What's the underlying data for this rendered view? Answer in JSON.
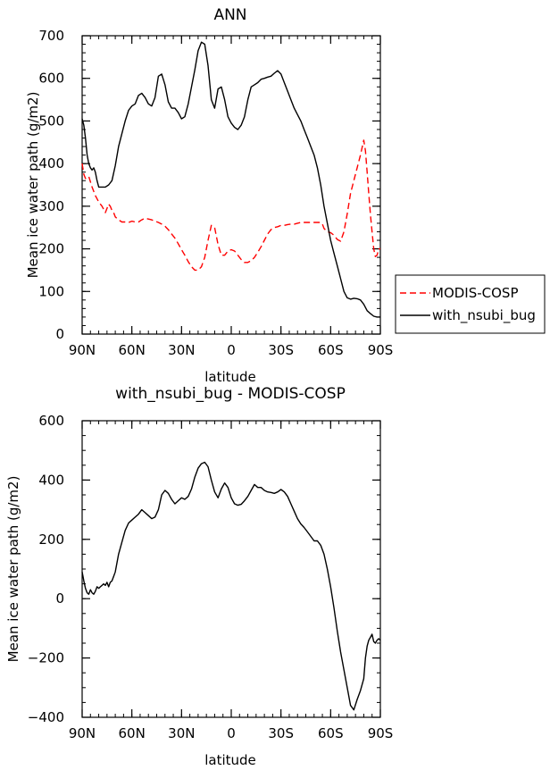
{
  "chart_data": [
    {
      "type": "line",
      "title": "ANN",
      "xlabel": "latitude",
      "ylabel": "Mean ice water path (g/m2)",
      "xlim": [
        90,
        -90
      ],
      "ylim": [
        0,
        700
      ],
      "xticks": [
        90,
        60,
        30,
        0,
        -30,
        -60,
        -90
      ],
      "xtick_labels": [
        "90N",
        "60N",
        "30N",
        "0",
        "30S",
        "60S",
        "90S"
      ],
      "yticks": [
        0,
        100,
        200,
        300,
        400,
        500,
        600,
        700
      ],
      "ytick_labels": [
        "0",
        "100",
        "200",
        "300",
        "400",
        "500",
        "600",
        "700"
      ],
      "legend": "right",
      "series": [
        {
          "name": "MODIS-COSP",
          "color": "#ff0000",
          "dash": "dashed",
          "x": [
            90,
            89,
            88,
            86,
            84,
            82,
            80,
            78,
            76,
            74,
            73,
            72,
            71,
            70,
            68,
            66,
            64,
            62,
            60,
            58,
            56,
            54,
            52,
            50,
            48,
            46,
            44,
            42,
            40,
            38,
            36,
            34,
            32,
            30,
            28,
            26,
            24,
            22,
            20,
            18,
            16,
            14,
            12,
            10,
            8,
            6,
            4,
            2,
            0,
            -2,
            -4,
            -6,
            -8,
            -10,
            -12,
            -14,
            -16,
            -18,
            -20,
            -22,
            -24,
            -26,
            -28,
            -30,
            -32,
            -34,
            -36,
            -38,
            -40,
            -42,
            -44,
            -46,
            -48,
            -50,
            -52,
            -54,
            -55,
            -56,
            -58,
            -60,
            -62,
            -64,
            -66,
            -68,
            -70,
            -72,
            -74,
            -76,
            -78,
            -80,
            -81,
            -82,
            -83,
            -84,
            -85,
            -86,
            -87,
            -88,
            -89,
            -90
          ],
          "y": [
            400,
            375,
            365,
            370,
            345,
            325,
            310,
            300,
            285,
            305,
            300,
            290,
            285,
            275,
            268,
            263,
            263,
            262,
            265,
            263,
            263,
            268,
            272,
            270,
            268,
            265,
            262,
            258,
            253,
            245,
            235,
            225,
            212,
            198,
            185,
            170,
            158,
            150,
            150,
            158,
            180,
            220,
            255,
            250,
            210,
            185,
            185,
            195,
            198,
            195,
            185,
            175,
            168,
            168,
            172,
            180,
            192,
            205,
            220,
            235,
            245,
            250,
            252,
            255,
            255,
            257,
            258,
            258,
            260,
            262,
            262,
            262,
            262,
            262,
            262,
            262,
            258,
            248,
            240,
            238,
            232,
            222,
            218,
            240,
            282,
            330,
            360,
            390,
            420,
            455,
            430,
            380,
            330,
            280,
            240,
            200,
            182,
            185,
            200,
            200
          ]
        },
        {
          "name": "with_nsubi_bug",
          "color": "#000000",
          "dash": "solid",
          "x": [
            90,
            89,
            88,
            87,
            86,
            85,
            84,
            83,
            82,
            81,
            80,
            78,
            76,
            74,
            72,
            70,
            68,
            66,
            64,
            62,
            60,
            58,
            56,
            54,
            52,
            50,
            48,
            46,
            44,
            42,
            40,
            38,
            36,
            34,
            32,
            30,
            28,
            26,
            24,
            22,
            20,
            18,
            16,
            14,
            12,
            10,
            8,
            6,
            4,
            2,
            0,
            -2,
            -4,
            -6,
            -8,
            -10,
            -12,
            -14,
            -16,
            -18,
            -20,
            -22,
            -24,
            -26,
            -28,
            -30,
            -32,
            -34,
            -36,
            -38,
            -40,
            -42,
            -44,
            -46,
            -48,
            -50,
            -52,
            -54,
            -56,
            -58,
            -60,
            -62,
            -64,
            -66,
            -68,
            -70,
            -72,
            -74,
            -76,
            -78,
            -80,
            -82,
            -84,
            -86,
            -88,
            -90
          ],
          "y": [
            505,
            490,
            460,
            420,
            400,
            390,
            385,
            390,
            380,
            360,
            345,
            345,
            345,
            350,
            360,
            395,
            440,
            470,
            500,
            525,
            535,
            540,
            560,
            565,
            555,
            540,
            535,
            555,
            605,
            610,
            585,
            545,
            530,
            530,
            520,
            505,
            510,
            540,
            580,
            620,
            665,
            685,
            680,
            630,
            550,
            530,
            575,
            580,
            550,
            510,
            495,
            485,
            480,
            490,
            510,
            550,
            580,
            585,
            590,
            598,
            600,
            603,
            605,
            612,
            618,
            610,
            590,
            570,
            550,
            530,
            515,
            500,
            480,
            460,
            440,
            420,
            390,
            350,
            300,
            260,
            220,
            190,
            160,
            130,
            100,
            85,
            82,
            84,
            83,
            80,
            70,
            55,
            48,
            42,
            40,
            40
          ]
        }
      ]
    },
    {
      "type": "line",
      "title": "with_nsubi_bug - MODIS-COSP",
      "xlabel": "latitude",
      "ylabel": "Mean ice water path (g/m2)",
      "xlim": [
        90,
        -90
      ],
      "ylim": [
        -400,
        600
      ],
      "xticks": [
        90,
        60,
        30,
        0,
        -30,
        -60,
        -90
      ],
      "xtick_labels": [
        "90N",
        "60N",
        "30N",
        "0",
        "30S",
        "60S",
        "90S"
      ],
      "yticks": [
        -400,
        -200,
        0,
        200,
        400,
        600
      ],
      "ytick_labels": [
        "−400",
        "−200",
        "0",
        "200",
        "400",
        "600"
      ],
      "series": [
        {
          "name": "with_nsubi_bug - MODIS-COSP",
          "color": "#000000",
          "dash": "solid",
          "x": [
            90,
            89,
            88,
            87,
            86,
            85,
            84,
            83,
            82,
            81,
            80,
            79,
            78,
            77,
            76,
            75,
            74,
            73,
            72,
            71,
            70,
            68,
            66,
            64,
            62,
            60,
            58,
            56,
            54,
            52,
            50,
            48,
            46,
            44,
            42,
            40,
            38,
            36,
            34,
            32,
            30,
            28,
            26,
            24,
            22,
            20,
            18,
            16,
            14,
            12,
            10,
            8,
            6,
            4,
            2,
            0,
            -2,
            -4,
            -6,
            -8,
            -10,
            -12,
            -14,
            -16,
            -18,
            -20,
            -22,
            -24,
            -26,
            -28,
            -30,
            -32,
            -34,
            -36,
            -38,
            -40,
            -42,
            -44,
            -46,
            -48,
            -50,
            -52,
            -54,
            -56,
            -58,
            -60,
            -62,
            -64,
            -66,
            -68,
            -70,
            -72,
            -74,
            -76,
            -78,
            -80,
            -81,
            -82,
            -83,
            -84,
            -85,
            -86,
            -87,
            -88,
            -89,
            -90
          ],
          "y": [
            90,
            60,
            35,
            20,
            15,
            30,
            20,
            15,
            25,
            40,
            35,
            40,
            45,
            50,
            45,
            55,
            40,
            55,
            60,
            75,
            90,
            150,
            190,
            230,
            255,
            265,
            275,
            285,
            300,
            290,
            280,
            270,
            275,
            300,
            350,
            365,
            355,
            335,
            320,
            330,
            340,
            335,
            345,
            370,
            410,
            440,
            455,
            460,
            445,
            400,
            360,
            340,
            370,
            390,
            375,
            340,
            320,
            315,
            318,
            330,
            345,
            365,
            385,
            375,
            375,
            365,
            360,
            358,
            355,
            360,
            368,
            360,
            345,
            320,
            295,
            270,
            252,
            240,
            225,
            210,
            195,
            195,
            180,
            150,
            100,
            40,
            -30,
            -110,
            -180,
            -240,
            -300,
            -360,
            -375,
            -340,
            -310,
            -270,
            -200,
            -160,
            -140,
            -130,
            -120,
            -145,
            -150,
            -140,
            -135,
            -140
          ]
        }
      ]
    }
  ]
}
